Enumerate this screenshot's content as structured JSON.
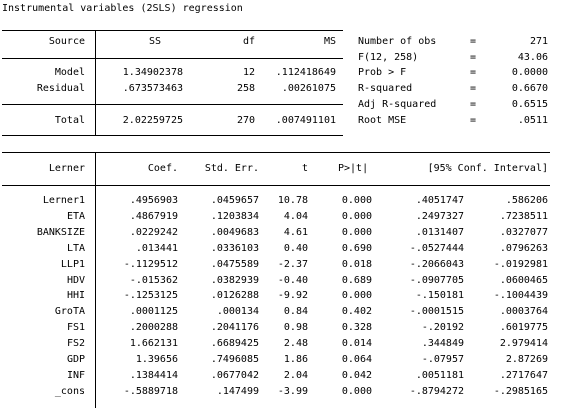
{
  "title": "Instrumental variables (2SLS) regression",
  "anova": {
    "headers": {
      "source": "Source",
      "ss": "SS",
      "df": "df",
      "ms": "MS"
    },
    "rows": [
      {
        "source": "Model",
        "ss": "1.34902378",
        "df": "12",
        "ms": ".112418649"
      },
      {
        "source": "Residual",
        "ss": ".673573463",
        "df": "258",
        "ms": ".00261075"
      }
    ],
    "total": {
      "source": "Total",
      "ss": "2.02259725",
      "df": "270",
      "ms": ".007491101"
    }
  },
  "stats": [
    {
      "label": "Number of obs",
      "eq": "=",
      "value": "271"
    },
    {
      "label": "F(12, 258)",
      "eq": "=",
      "value": "43.06"
    },
    {
      "label": "Prob > F",
      "eq": "=",
      "value": "0.0000"
    },
    {
      "label": "R-squared",
      "eq": "=",
      "value": "0.6670"
    },
    {
      "label": "Adj R-squared",
      "eq": "=",
      "value": "0.6515"
    },
    {
      "label": "Root MSE",
      "eq": "=",
      "value": ".0511"
    }
  ],
  "coef": {
    "headers": {
      "var": "Lerner",
      "coef": "Coef.",
      "se": "Std. Err.",
      "t": "t",
      "p": "P>|t|",
      "ci": "[95% Conf. Interval]"
    },
    "rows": [
      {
        "var": "Lerner1",
        "coef": ".4956903",
        "se": ".0459657",
        "t": "10.78",
        "p": "0.000",
        "lo": ".4051747",
        "hi": ".586206"
      },
      {
        "var": "ETA",
        "coef": ".4867919",
        "se": ".1203834",
        "t": "4.04",
        "p": "0.000",
        "lo": ".2497327",
        "hi": ".7238511"
      },
      {
        "var": "BANKSIZE",
        "coef": ".0229242",
        "se": ".0049683",
        "t": "4.61",
        "p": "0.000",
        "lo": ".0131407",
        "hi": ".0327077"
      },
      {
        "var": "LTA",
        "coef": ".013441",
        "se": ".0336103",
        "t": "0.40",
        "p": "0.690",
        "lo": "-.0527444",
        "hi": ".0796263"
      },
      {
        "var": "LLP1",
        "coef": "-.1129512",
        "se": ".0475589",
        "t": "-2.37",
        "p": "0.018",
        "lo": "-.2066043",
        "hi": "-.0192981"
      },
      {
        "var": "HDV",
        "coef": "-.015362",
        "se": ".0382939",
        "t": "-0.40",
        "p": "0.689",
        "lo": "-.0907705",
        "hi": ".0600465"
      },
      {
        "var": "HHI",
        "coef": "-.1253125",
        "se": ".0126288",
        "t": "-9.92",
        "p": "0.000",
        "lo": "-.150181",
        "hi": "-.1004439"
      },
      {
        "var": "GroTA",
        "coef": ".0001125",
        "se": ".000134",
        "t": "0.84",
        "p": "0.402",
        "lo": "-.0001515",
        "hi": ".0003764"
      },
      {
        "var": "FS1",
        "coef": ".2000288",
        "se": ".2041176",
        "t": "0.98",
        "p": "0.328",
        "lo": "-.20192",
        "hi": ".6019775"
      },
      {
        "var": "FS2",
        "coef": "1.662131",
        "se": ".6689425",
        "t": "2.48",
        "p": "0.014",
        "lo": ".344849",
        "hi": "2.979414"
      },
      {
        "var": "GDP",
        "coef": "1.39656",
        "se": ".7496085",
        "t": "1.86",
        "p": "0.064",
        "lo": "-.07957",
        "hi": "2.87269"
      },
      {
        "var": "INF",
        "coef": ".1384414",
        "se": ".0677042",
        "t": "2.04",
        "p": "0.042",
        "lo": ".0051181",
        "hi": ".2717647"
      },
      {
        "var": "_cons",
        "coef": "-.5889718",
        "se": ".147499",
        "t": "-3.99",
        "p": "0.000",
        "lo": "-.8794272",
        "hi": "-.2985165"
      }
    ]
  }
}
